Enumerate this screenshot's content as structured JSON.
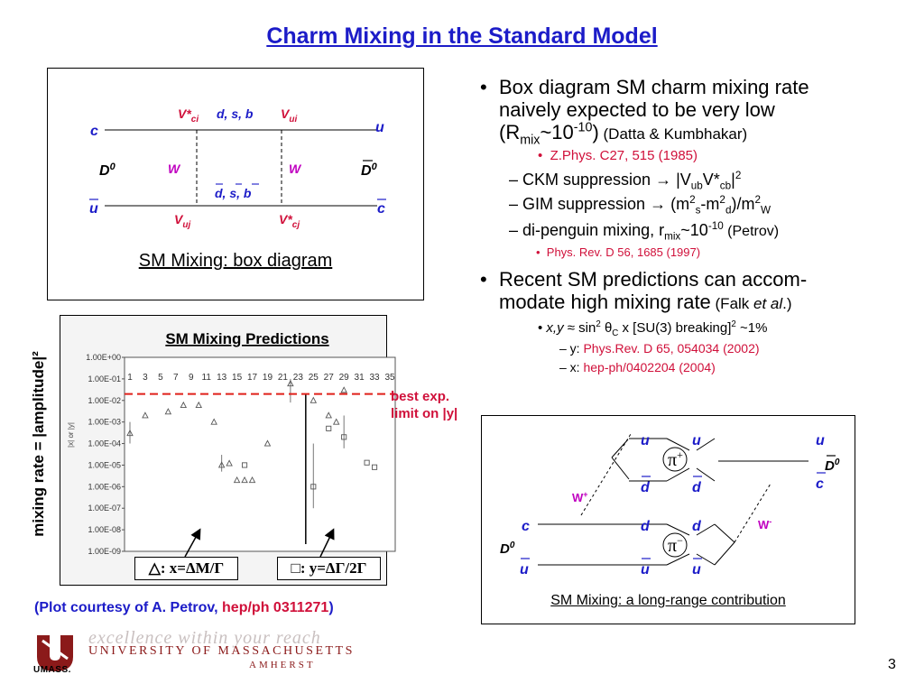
{
  "title": "Charm Mixing in the Standard Model",
  "box_diagram": {
    "caption": "SM Mixing: box diagram",
    "top_left_quark": "c",
    "top_right_quark": "u",
    "bottom_left_quark": "u",
    "bottom_right_quark": "c",
    "meson_left": "D",
    "meson_left_sup": "0",
    "meson_right": "D",
    "meson_right_sup": "0",
    "v_top_left": "V*",
    "v_top_left_sub": "ci",
    "v_top_mid": "d, s, b",
    "v_top_right": "V",
    "v_top_right_sub": "ui",
    "w_left": "W",
    "w_right": "W",
    "v_bottom_mid": "d, s, b",
    "v_bottom_left": "V",
    "v_bottom_left_sub": "uj",
    "v_bottom_right": "V*",
    "v_bottom_right_sub": "cj"
  },
  "plot": {
    "title": "SM Mixing Predictions",
    "ylabel": "mixing rate = |amplitude|²",
    "inner_ylabel": "|x| or |y|",
    "y_ticks": [
      "1.00E+00",
      "1.00E-01",
      "1.00E-02",
      "1.00E-03",
      "1.00E-04",
      "1.00E-05",
      "1.00E-06",
      "1.00E-07",
      "1.00E-08",
      "1.00E-09"
    ],
    "x_ticks": [
      "1",
      "3",
      "5",
      "7",
      "9",
      "11",
      "13",
      "15",
      "17",
      "19",
      "21",
      "23",
      "25",
      "27",
      "29",
      "31",
      "33",
      "35"
    ],
    "limit_label_line1": "best exp.",
    "limit_label_line2": "limit on |y|",
    "legend_x": "△: x=ΔM/Γ",
    "legend_y": "□: y=ΔΓ/2Γ",
    "courtesy_prefix": "(Plot courtesy of A. Petrov, ",
    "courtesy_ref": "hep/ph 0311271",
    "courtesy_suffix": ")"
  },
  "chart_data": {
    "type": "scatter",
    "title": "SM Mixing Predictions",
    "xlabel": "",
    "ylabel": "|x| or |y|",
    "x_ticks": [
      1,
      3,
      5,
      7,
      9,
      11,
      13,
      15,
      17,
      19,
      21,
      23,
      25,
      27,
      29,
      31,
      33,
      35
    ],
    "y_scale": "log",
    "ylim": [
      1e-09,
      1
    ],
    "best_limit_y": 0.02,
    "series": [
      {
        "name": "△: x=ΔM/Γ",
        "marker": "triangle",
        "points": [
          [
            1,
            0.0003
          ],
          [
            3,
            0.002
          ],
          [
            6,
            0.003
          ],
          [
            8,
            0.006
          ],
          [
            10,
            0.006
          ],
          [
            12,
            0.001
          ],
          [
            13,
            1e-05
          ],
          [
            14,
            1.2e-05
          ],
          [
            15,
            2e-06
          ],
          [
            16,
            2e-06
          ],
          [
            17,
            2e-06
          ],
          [
            19,
            0.0001
          ],
          [
            22,
            0.06
          ],
          [
            25,
            0.01
          ],
          [
            27,
            0.002
          ],
          [
            28,
            0.001
          ],
          [
            29,
            0.03
          ]
        ],
        "error_bars": [
          [
            1,
            0.0001,
            0.001
          ],
          [
            13,
            5e-06,
            3e-05
          ],
          [
            22,
            0.008,
            0.1
          ]
        ]
      },
      {
        "name": "□: y=ΔΓ/2Γ",
        "marker": "square",
        "points": [
          [
            16,
            1e-05
          ],
          [
            25,
            1e-06
          ],
          [
            27,
            0.0005
          ],
          [
            29,
            0.0002
          ],
          [
            32,
            1.3e-05
          ],
          [
            33,
            8e-06
          ]
        ],
        "error_bars": [
          [
            25,
            1e-07,
            0.0001
          ],
          [
            29,
            6e-05,
            0.002
          ]
        ]
      }
    ]
  },
  "bullets": {
    "b1_l1": "Box diagram SM charm mixing rate",
    "b1_l2": "naively expected to be very low",
    "b1_l3_a": "(R",
    "b1_l3_sub": "mix",
    "b1_l3_b": "~10",
    "b1_l3_sup": "-10",
    "b1_l3_c": ")",
    "b1_l3_small": " (Datta & Kumbhakar)",
    "b1_ref": "Z.Phys. C27, 515 (1985)",
    "s1_a": "– CKM suppression → |V",
    "s1_sub1": "ub",
    "s1_b": "V*",
    "s1_sub2": "cb",
    "s1_c": "|",
    "s1_sup": "2",
    "s2_a": "– GIM suppression → (m",
    "s2_sup1": "2",
    "s2_sub1": "s",
    "s2_b": "-m",
    "s2_sup2": "2",
    "s2_sub2": "d",
    "s2_c": ")/m",
    "s2_sup3": "2",
    "s2_sub3": "W",
    "s3_a": "– di-penguin mixing, r",
    "s3_sub": "mix",
    "s3_b": "~10",
    "s3_sup": "-10",
    "s3_small": " (Petrov)",
    "s3_ref": "Phys. Rev. D 56, 1685 (1997)",
    "b2_l1": "Recent SM predictions can accom-",
    "b2_l2": "modate high mixing rate",
    "b2_small_a": " (Falk ",
    "b2_small_em": "et al",
    "b2_small_b": ".)",
    "b2_sub_a": "x,y",
    "b2_sub_b": " ≈ sin",
    "b2_sub_sup1": "2",
    "b2_sub_c": " θ",
    "b2_sub_sub": "C",
    "b2_sub_d": " x [SU(3) breaking]",
    "b2_sub_sup2": "2",
    "b2_sub_e": " ~1%",
    "r1_label": "–  y: ",
    "r1_ref": "Phys.Rev. D 65, 054034 (2002)",
    "r2_label": "–  x: ",
    "r2_ref": "hep-ph/0402204 (2004)"
  },
  "long_range": {
    "caption": "SM Mixing: a long-range contribution",
    "pi_plus": "π",
    "pi_plus_sup": "+",
    "pi_minus": "π",
    "pi_minus_sup": "−",
    "w_left": "W",
    "w_left_sup": "+",
    "w_right": "W",
    "w_right_sup": "-",
    "D_left": "D",
    "D_left_sup": "0",
    "D_right": "D",
    "D_right_sup": "0",
    "q_u": "u",
    "q_d": "d",
    "q_c": "c"
  },
  "footer": {
    "logo_letters": "UMASS.",
    "motto": "excellence within your reach",
    "university": "UNIVERSITY OF MASSACHUSETTS",
    "campus": "AMHERST",
    "page_number": "3"
  }
}
